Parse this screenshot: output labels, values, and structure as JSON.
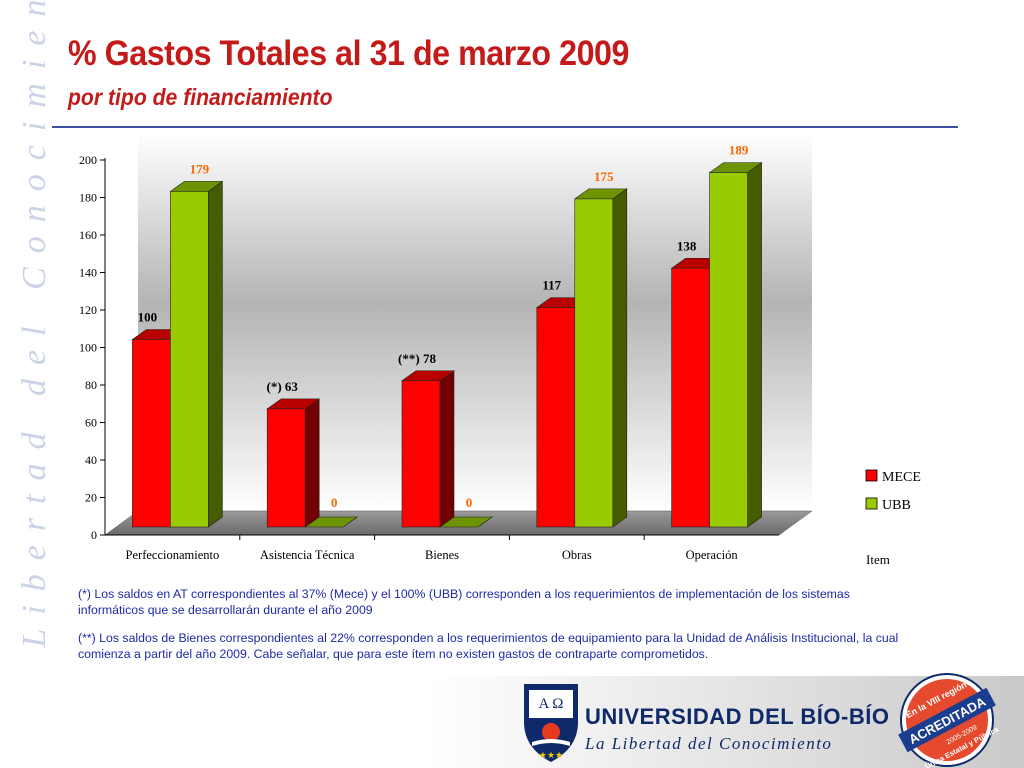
{
  "side_motto": "La Libertad del Conocimiento",
  "header": {
    "title": "% Gastos Totales al 31 de marzo 2009",
    "subtitle": "por tipo de financiamiento"
  },
  "chart_data": {
    "type": "bar",
    "categories": [
      "Perfeccionamiento",
      "Asistencia Técnica",
      "Bienes",
      "Obras",
      "Operación"
    ],
    "series": [
      {
        "name": "MECE",
        "color": "#ff0000",
        "values": [
          100,
          63,
          78,
          117,
          138
        ],
        "labels": [
          "100",
          "(*) 63",
          "(**) 78",
          "117",
          "138"
        ],
        "label_color": "#000000"
      },
      {
        "name": "UBB",
        "color": "#99cc00",
        "values": [
          179,
          0,
          0,
          175,
          189
        ],
        "labels": [
          "179",
          "0",
          "0",
          "175",
          "189"
        ],
        "label_color": "#ff6600"
      }
    ],
    "y_ticks": [
      "0",
      "20",
      "40",
      "60",
      "80",
      "100",
      "120",
      "140",
      "160",
      "180",
      "200"
    ],
    "ylim": [
      0,
      200
    ],
    "xlabel": "Item",
    "ylabel": "",
    "legend_position": "right",
    "style": "3d-columns"
  },
  "notes": {
    "note1": "(*) Los saldos  en AT correspondientes al 37% (Mece) y el 100% (UBB)  corresponden a los requerimientos de implementación de los sistemas informáticos que se desarrollarán durante el año 2009",
    "note2": "(**) Los saldos de Bienes correspondientes al 22% corresponden a los requerimientos de equipamiento para la Unidad de Análisis Institucional, la cual comienza a partir del año 2009. Cabe señalar, que para este ítem no existen gastos de contraparte comprometidos."
  },
  "footer": {
    "university": "UNIVERSIDAD DEL BÍO-BÍO",
    "motto": "La Libertad del Conocimiento",
    "logo_letters": "A Ω",
    "badge": {
      "top": "En la VIII región",
      "main": "ACREDITADA",
      "years": "2005-2009",
      "bottom": "Única Estatal y Pública"
    }
  }
}
